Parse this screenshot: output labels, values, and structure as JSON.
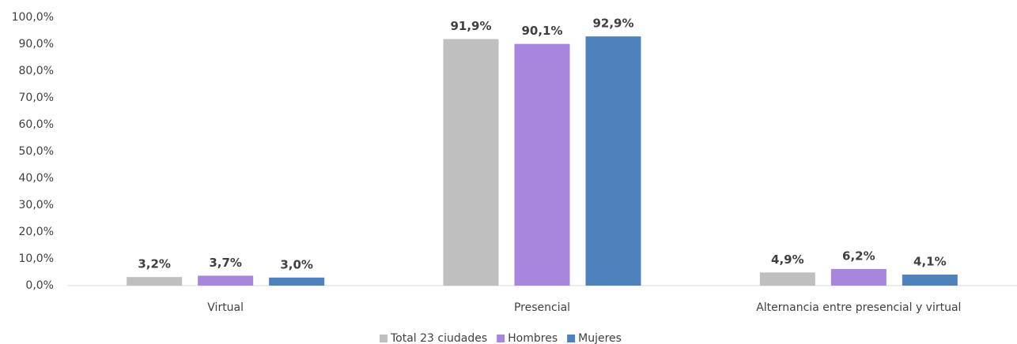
{
  "chart_data": {
    "type": "bar",
    "categories": [
      "Virtual",
      "Presencial",
      "Alternancia entre presencial y virtual"
    ],
    "series": [
      {
        "name": "Total 23 ciudades",
        "color": "#bfbfbf",
        "values": [
          3.2,
          91.9,
          4.9
        ],
        "value_labels": [
          "3,2%",
          "91,9%",
          "4,9%"
        ]
      },
      {
        "name": "Hombres",
        "color": "#a886db",
        "values": [
          3.7,
          90.1,
          6.2
        ],
        "value_labels": [
          "3,7%",
          "90,1%",
          "6,2%"
        ]
      },
      {
        "name": "Mujeres",
        "color": "#4f81bd",
        "values": [
          3.0,
          92.9,
          4.1
        ],
        "value_labels": [
          "3,0%",
          "92,9%",
          "4,1%"
        ]
      }
    ],
    "ylim": [
      0,
      100
    ],
    "yticks": [
      {
        "value": 0,
        "label": "0,0%"
      },
      {
        "value": 10,
        "label": "10,0%"
      },
      {
        "value": 20,
        "label": "20,0%"
      },
      {
        "value": 30,
        "label": "30,0%"
      },
      {
        "value": 40,
        "label": "40,0%"
      },
      {
        "value": 50,
        "label": "50,0%"
      },
      {
        "value": 60,
        "label": "60,0%"
      },
      {
        "value": 70,
        "label": "70,0%"
      },
      {
        "value": 80,
        "label": "80,0%"
      },
      {
        "value": 90,
        "label": "90,0%"
      },
      {
        "value": 100,
        "label": "100,0%"
      }
    ],
    "grid": false,
    "legend": "bottom"
  }
}
